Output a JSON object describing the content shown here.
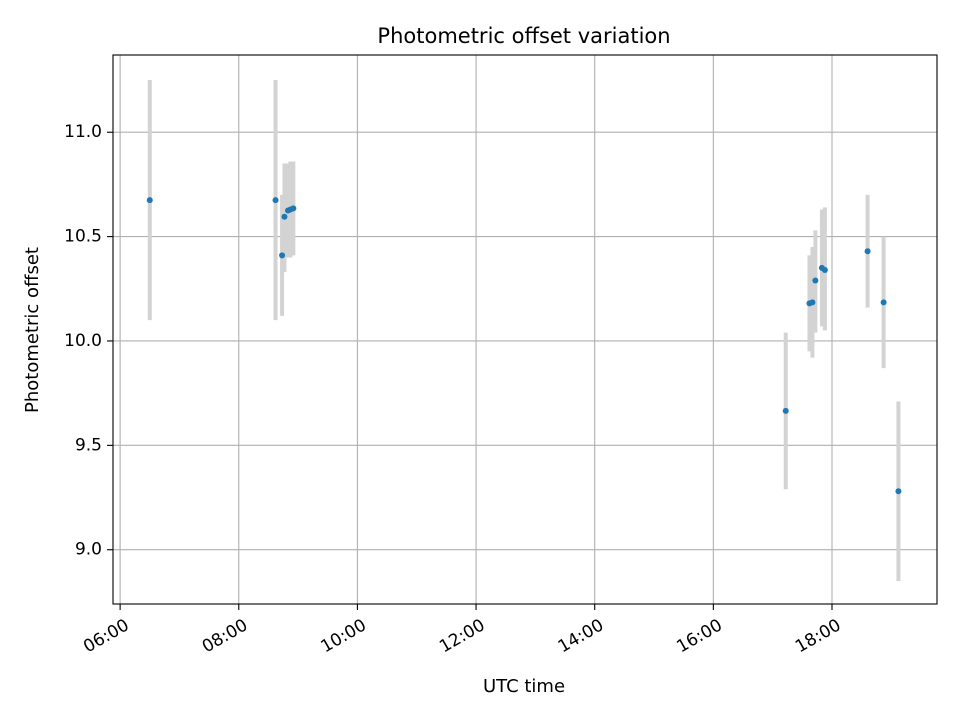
{
  "chart_data": {
    "type": "scatter",
    "title": "Photometric offset variation",
    "xlabel": "UTC time",
    "ylabel": "Photometric offset",
    "x_unit": "hours (UTC)",
    "xlim": [
      5.88,
      19.77
    ],
    "ylim": [
      8.74,
      11.37
    ],
    "xticks": [
      6,
      8,
      10,
      12,
      14,
      16,
      18
    ],
    "xtick_labels": [
      "06:00",
      "08:00",
      "10:00",
      "12:00",
      "14:00",
      "16:00",
      "18:00"
    ],
    "yticks": [
      9.0,
      9.5,
      10.0,
      10.5,
      11.0
    ],
    "ytick_labels": [
      "9.0",
      "9.5",
      "10.0",
      "10.5",
      "11.0"
    ],
    "grid": true,
    "colors": {
      "point": "#1f77b4",
      "errorbar": "#d3d3d3",
      "grid": "#b0b0b0",
      "axes": "#000000"
    },
    "series": [
      {
        "points": [
          {
            "x": 6.5,
            "y": 10.675,
            "lo": 10.1,
            "hi": 11.25
          },
          {
            "x": 8.62,
            "y": 10.675,
            "lo": 10.1,
            "hi": 11.25
          },
          {
            "x": 8.73,
            "y": 10.41,
            "lo": 10.12,
            "hi": 10.7
          },
          {
            "x": 8.77,
            "y": 10.595,
            "lo": 10.33,
            "hi": 10.85
          },
          {
            "x": 8.83,
            "y": 10.625,
            "lo": 10.4,
            "hi": 10.85
          },
          {
            "x": 8.87,
            "y": 10.63,
            "lo": 10.4,
            "hi": 10.86
          },
          {
            "x": 8.92,
            "y": 10.635,
            "lo": 10.41,
            "hi": 10.86
          },
          {
            "x": 17.22,
            "y": 9.665,
            "lo": 9.29,
            "hi": 10.04
          },
          {
            "x": 17.62,
            "y": 10.18,
            "lo": 9.95,
            "hi": 10.41
          },
          {
            "x": 17.67,
            "y": 10.185,
            "lo": 9.92,
            "hi": 10.45
          },
          {
            "x": 17.72,
            "y": 10.29,
            "lo": 10.04,
            "hi": 10.53
          },
          {
            "x": 17.83,
            "y": 10.35,
            "lo": 10.07,
            "hi": 10.63
          },
          {
            "x": 17.88,
            "y": 10.34,
            "lo": 10.05,
            "hi": 10.64
          },
          {
            "x": 18.6,
            "y": 10.43,
            "lo": 10.16,
            "hi": 10.7
          },
          {
            "x": 18.87,
            "y": 10.185,
            "lo": 9.87,
            "hi": 10.5
          },
          {
            "x": 19.12,
            "y": 9.28,
            "lo": 8.85,
            "hi": 9.71
          }
        ]
      }
    ]
  }
}
